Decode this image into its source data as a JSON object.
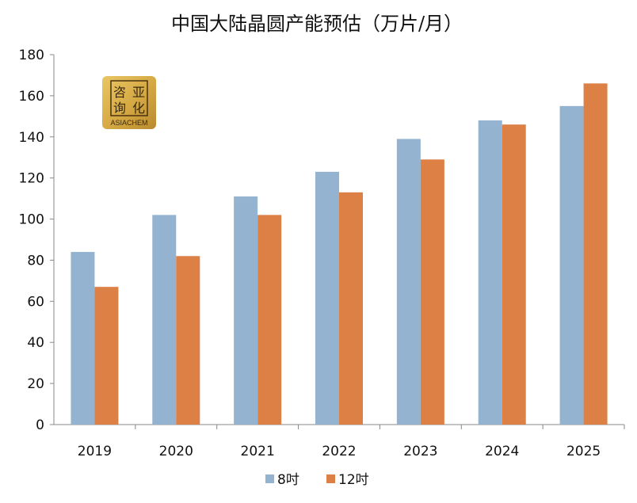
{
  "chart_data": {
    "type": "bar",
    "title": "中国大陆晶圆产能预估（万片/月）",
    "categories": [
      "2019",
      "2020",
      "2021",
      "2022",
      "2023",
      "2024",
      "2025"
    ],
    "series": [
      {
        "name": "8吋",
        "color": "#93b3d0",
        "values": [
          84,
          102,
          111,
          123,
          139,
          148,
          155
        ]
      },
      {
        "name": "12吋",
        "color": "#dd8046",
        "values": [
          67,
          82,
          102,
          113,
          129,
          146,
          166
        ]
      }
    ],
    "ylim": [
      0,
      180
    ],
    "yticks": [
      0,
      20,
      40,
      60,
      80,
      100,
      120,
      140,
      160,
      180
    ],
    "grid": false,
    "legend": "bottom",
    "xlabel": "",
    "ylabel": ""
  },
  "logo": {
    "cn": "咨亚询化",
    "en": "ASIACHEM"
  }
}
